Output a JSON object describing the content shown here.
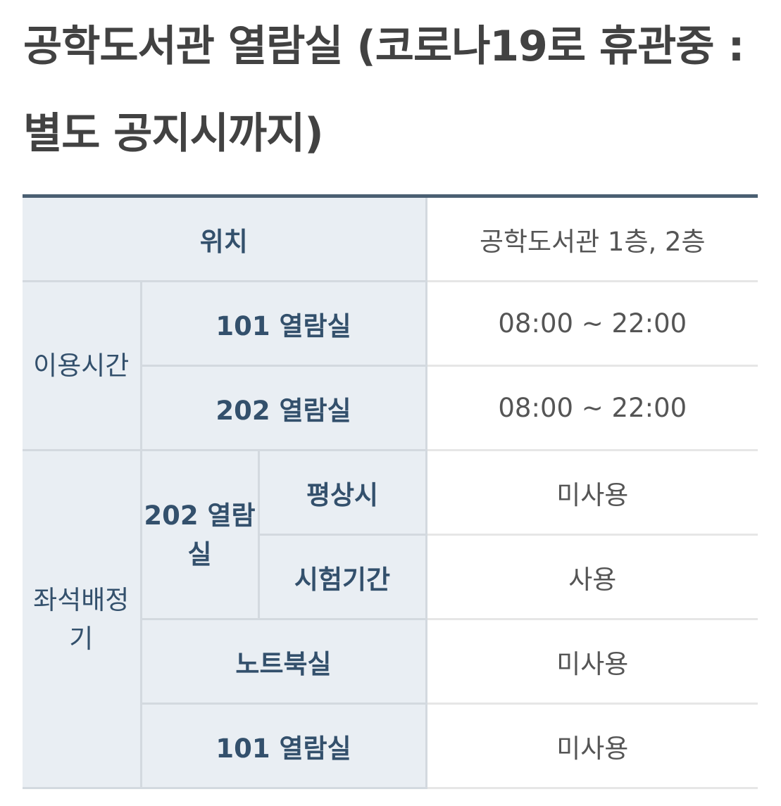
{
  "title": "공학도서관 열람실 (코로나19로 휴관중 : 별도 공지시까지)",
  "table": {
    "location": {
      "label": "위치",
      "value": "공학도서관 1층, 2층"
    },
    "hours": {
      "label": "이용시간",
      "rows": [
        {
          "room": "101 열람실",
          "value": "08:00 ~ 22:00"
        },
        {
          "room": "202 열람실",
          "value": "08:00 ~ 22:00"
        }
      ]
    },
    "seating": {
      "label": "좌석배정기",
      "room202": {
        "label": "202 열람실",
        "rows": [
          {
            "period": "평상시",
            "value": "미사용"
          },
          {
            "period": "시험기간",
            "value": "사용"
          }
        ]
      },
      "rows": [
        {
          "room": "노트북실",
          "value": "미사용"
        },
        {
          "room": "101 열람실",
          "value": "미사용"
        }
      ]
    }
  }
}
